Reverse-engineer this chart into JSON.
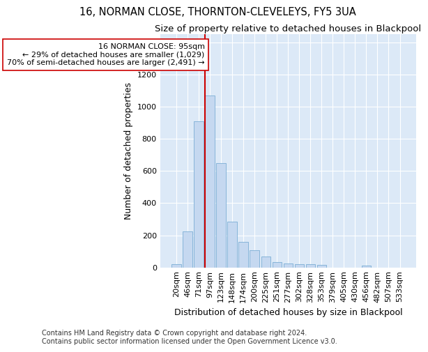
{
  "title": "16, NORMAN CLOSE, THORNTON-CLEVELEYS, FY5 3UA",
  "subtitle": "Size of property relative to detached houses in Blackpool",
  "xlabel": "Distribution of detached houses by size in Blackpool",
  "ylabel": "Number of detached properties",
  "categories": [
    "20sqm",
    "46sqm",
    "71sqm",
    "97sqm",
    "123sqm",
    "148sqm",
    "174sqm",
    "200sqm",
    "225sqm",
    "251sqm",
    "277sqm",
    "302sqm",
    "328sqm",
    "353sqm",
    "379sqm",
    "405sqm",
    "430sqm",
    "456sqm",
    "482sqm",
    "507sqm",
    "533sqm"
  ],
  "values": [
    20,
    225,
    910,
    1070,
    648,
    285,
    158,
    105,
    70,
    35,
    25,
    20,
    20,
    15,
    0,
    0,
    0,
    10,
    0,
    0,
    0
  ],
  "bar_color": "#c5d8f0",
  "bar_edge_color": "#7aadd4",
  "vline_color": "#cc0000",
  "annotation_text": "16 NORMAN CLOSE: 95sqm\n← 29% of detached houses are smaller (1,029)\n70% of semi-detached houses are larger (2,491) →",
  "annotation_box_color": "#ffffff",
  "annotation_box_edge": "#cc0000",
  "ylim": [
    0,
    1450
  ],
  "yticks": [
    0,
    200,
    400,
    600,
    800,
    1000,
    1200,
    1400
  ],
  "footer": "Contains HM Land Registry data © Crown copyright and database right 2024.\nContains public sector information licensed under the Open Government Licence v3.0.",
  "fig_bg_color": "#ffffff",
  "plot_bg_color": "#dce9f7",
  "grid_color": "#ffffff",
  "title_fontsize": 10.5,
  "subtitle_fontsize": 9.5,
  "axis_label_fontsize": 9,
  "tick_fontsize": 8,
  "annotation_fontsize": 8,
  "footer_fontsize": 7
}
